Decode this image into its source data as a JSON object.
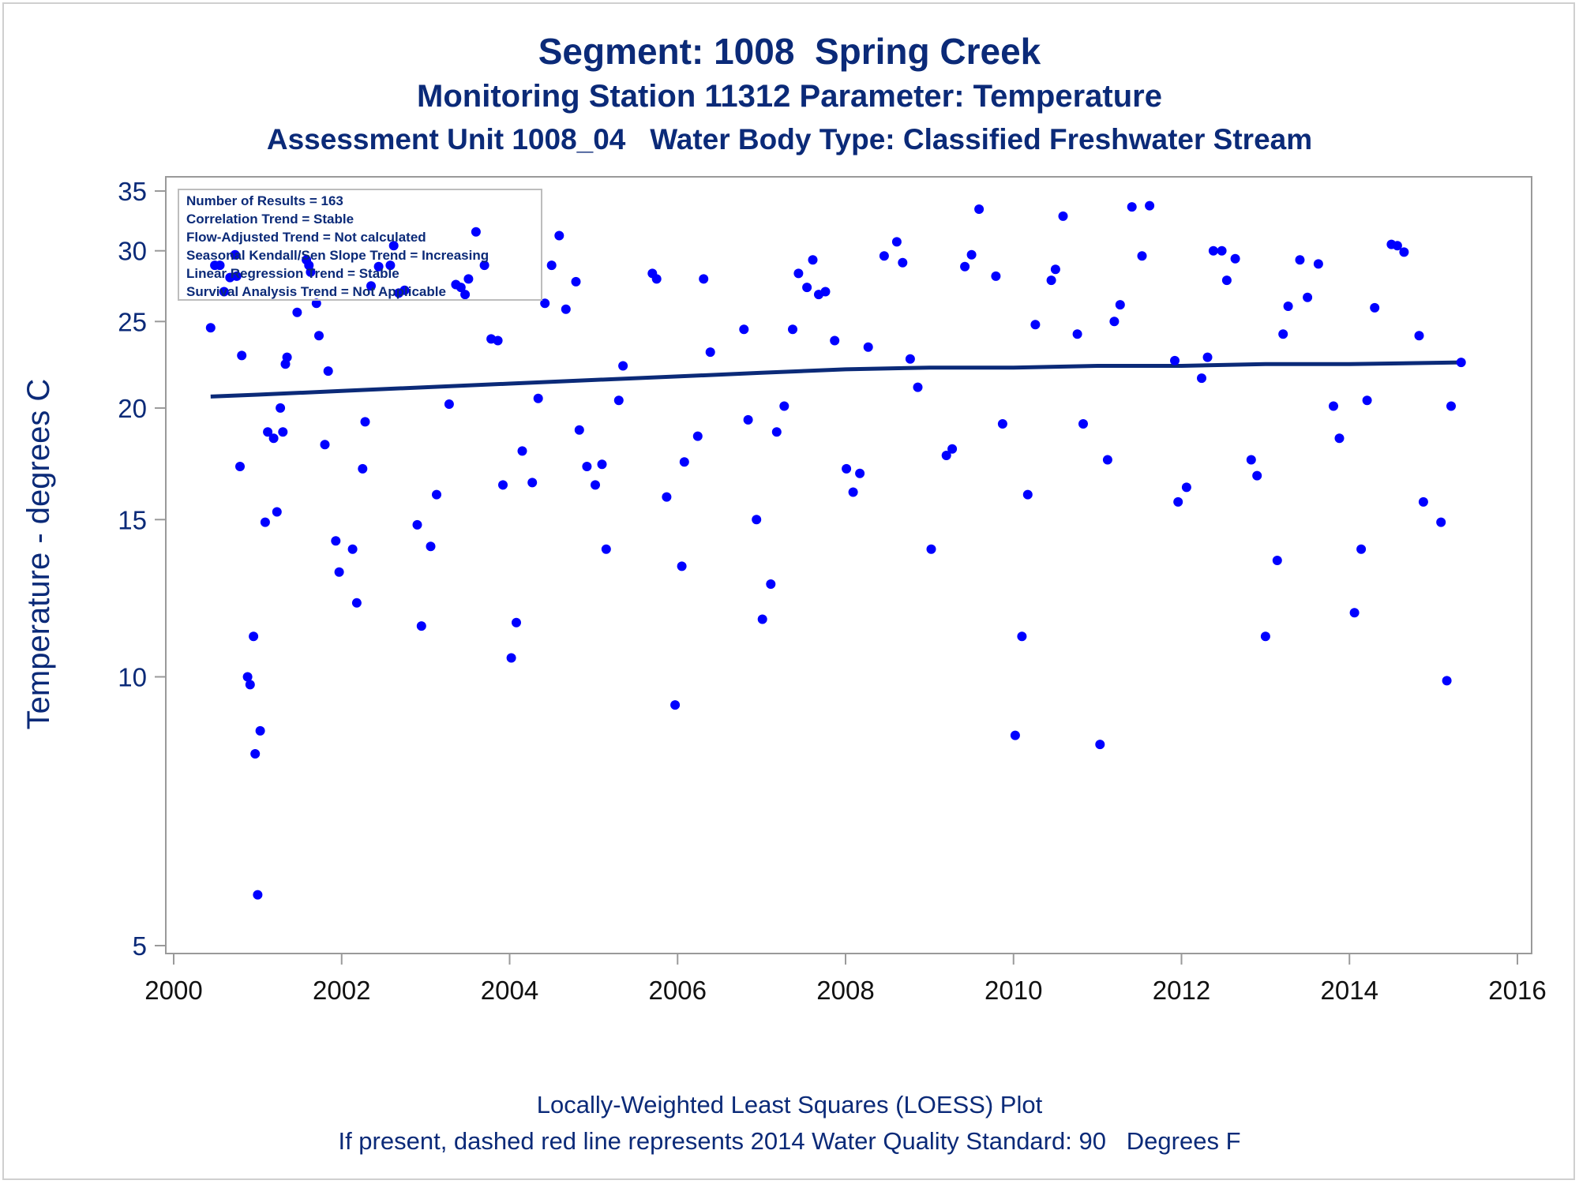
{
  "chart_data": {
    "type": "scatter",
    "title": "Segment: 1008  Spring Creek",
    "subtitle": "Monitoring Station 11312 Parameter: Temperature",
    "subtitle2": "Assessment Unit 1008_04   Water Body Type: Classified Freshwater Stream",
    "xlabel": "",
    "ylabel": "Temperature - degrees C",
    "footnote1": "Locally-Weighted Least Squares (LOESS) Plot",
    "footnote2": "If present, dashed red line represents 2014 Water Quality Standard: 90   Degrees F",
    "xlim": [
      2000,
      2016
    ],
    "ylim": [
      5,
      35
    ],
    "y_scale": "log",
    "x_ticks": [
      "2000",
      "2002",
      "2004",
      "2006",
      "2008",
      "2010",
      "2012",
      "2014",
      "2016"
    ],
    "y_ticks": [
      "5",
      "10",
      "15",
      "20",
      "25",
      "30",
      "35"
    ],
    "grid": false,
    "stats_box": {
      "placement": "top-left",
      "lines": [
        "Number of Results = 163",
        "Correlation Trend = Stable",
        "Flow-Adjusted Trend = Not calculated",
        "Seasonal Kendall/Sen Slope Trend = Increasing",
        "Linear Regression Trend = Stable",
        "Survival Analysis Trend = Not Applicable"
      ]
    },
    "colors": {
      "points": "#0000ff",
      "trend": "#0b2a78",
      "text": "#0b2a78"
    },
    "points": [
      [
        2000.44,
        24.6
      ],
      [
        2000.49,
        28.9
      ],
      [
        2000.55,
        28.9
      ],
      [
        2000.6,
        27.0
      ],
      [
        2000.67,
        28.0
      ],
      [
        2000.73,
        29.7
      ],
      [
        2000.75,
        28.1
      ],
      [
        2000.79,
        17.2
      ],
      [
        2000.81,
        22.9
      ],
      [
        2000.88,
        10.0
      ],
      [
        2000.91,
        9.8
      ],
      [
        2000.95,
        11.1
      ],
      [
        2000.97,
        8.2
      ],
      [
        2001.0,
        5.7
      ],
      [
        2001.03,
        8.7
      ],
      [
        2001.09,
        14.9
      ],
      [
        2001.12,
        18.8
      ],
      [
        2001.19,
        18.5
      ],
      [
        2001.23,
        15.3
      ],
      [
        2001.27,
        20.0
      ],
      [
        2001.3,
        18.8
      ],
      [
        2001.33,
        22.4
      ],
      [
        2001.35,
        22.8
      ],
      [
        2001.47,
        25.6
      ],
      [
        2001.58,
        29.3
      ],
      [
        2001.61,
        28.9
      ],
      [
        2001.63,
        28.4
      ],
      [
        2001.7,
        26.2
      ],
      [
        2001.73,
        24.1
      ],
      [
        2001.8,
        18.2
      ],
      [
        2001.84,
        22.0
      ],
      [
        2001.93,
        14.2
      ],
      [
        2001.97,
        13.1
      ],
      [
        2002.13,
        13.9
      ],
      [
        2002.18,
        12.1
      ],
      [
        2002.25,
        17.1
      ],
      [
        2002.28,
        19.3
      ],
      [
        2002.35,
        27.4
      ],
      [
        2002.44,
        28.8
      ],
      [
        2002.58,
        28.9
      ],
      [
        2002.62,
        30.4
      ],
      [
        2002.68,
        26.9
      ],
      [
        2002.75,
        27.1
      ],
      [
        2002.9,
        14.8
      ],
      [
        2002.95,
        11.4
      ],
      [
        2003.06,
        14.0
      ],
      [
        2003.13,
        16.0
      ],
      [
        2003.28,
        20.2
      ],
      [
        2003.36,
        27.5
      ],
      [
        2003.42,
        27.3
      ],
      [
        2003.47,
        26.8
      ],
      [
        2003.51,
        27.9
      ],
      [
        2003.6,
        31.5
      ],
      [
        2003.7,
        28.9
      ],
      [
        2003.78,
        23.9
      ],
      [
        2003.86,
        23.8
      ],
      [
        2003.92,
        16.4
      ],
      [
        2004.02,
        10.5
      ],
      [
        2004.08,
        11.5
      ],
      [
        2004.15,
        17.9
      ],
      [
        2004.27,
        16.5
      ],
      [
        2004.34,
        20.5
      ],
      [
        2004.42,
        26.2
      ],
      [
        2004.5,
        28.9
      ],
      [
        2004.59,
        31.2
      ],
      [
        2004.67,
        25.8
      ],
      [
        2004.79,
        27.7
      ],
      [
        2004.83,
        18.9
      ],
      [
        2004.92,
        17.2
      ],
      [
        2005.02,
        16.4
      ],
      [
        2005.1,
        17.3
      ],
      [
        2005.15,
        13.9
      ],
      [
        2005.3,
        20.4
      ],
      [
        2005.35,
        22.3
      ],
      [
        2005.7,
        28.3
      ],
      [
        2005.75,
        27.9
      ],
      [
        2005.87,
        15.9
      ],
      [
        2005.97,
        9.3
      ],
      [
        2006.05,
        13.3
      ],
      [
        2006.08,
        17.4
      ],
      [
        2006.24,
        18.6
      ],
      [
        2006.31,
        27.9
      ],
      [
        2006.39,
        23.1
      ],
      [
        2006.79,
        24.5
      ],
      [
        2006.84,
        19.4
      ],
      [
        2006.94,
        15.0
      ],
      [
        2007.01,
        11.6
      ],
      [
        2007.11,
        12.7
      ],
      [
        2007.18,
        18.8
      ],
      [
        2007.27,
        20.1
      ],
      [
        2007.37,
        24.5
      ],
      [
        2007.44,
        28.3
      ],
      [
        2007.54,
        27.3
      ],
      [
        2007.61,
        29.3
      ],
      [
        2007.68,
        26.8
      ],
      [
        2007.76,
        27.0
      ],
      [
        2007.87,
        23.8
      ],
      [
        2008.01,
        17.1
      ],
      [
        2008.09,
        16.1
      ],
      [
        2008.17,
        16.9
      ],
      [
        2008.27,
        23.4
      ],
      [
        2008.46,
        29.6
      ],
      [
        2008.61,
        30.7
      ],
      [
        2008.68,
        29.1
      ],
      [
        2008.77,
        22.7
      ],
      [
        2008.86,
        21.1
      ],
      [
        2009.02,
        13.9
      ],
      [
        2009.2,
        17.7
      ],
      [
        2009.27,
        18.0
      ],
      [
        2009.42,
        28.8
      ],
      [
        2009.5,
        29.7
      ],
      [
        2009.59,
        33.4
      ],
      [
        2009.79,
        28.1
      ],
      [
        2009.87,
        19.2
      ],
      [
        2010.02,
        8.6
      ],
      [
        2010.1,
        11.1
      ],
      [
        2010.17,
        16.0
      ],
      [
        2010.26,
        24.8
      ],
      [
        2010.45,
        27.8
      ],
      [
        2010.5,
        28.6
      ],
      [
        2010.59,
        32.8
      ],
      [
        2010.76,
        24.2
      ],
      [
        2010.83,
        19.2
      ],
      [
        2011.03,
        8.4
      ],
      [
        2011.12,
        17.5
      ],
      [
        2011.2,
        25.0
      ],
      [
        2011.27,
        26.1
      ],
      [
        2011.41,
        33.6
      ],
      [
        2011.53,
        29.6
      ],
      [
        2011.62,
        33.7
      ],
      [
        2011.92,
        22.6
      ],
      [
        2011.96,
        15.7
      ],
      [
        2012.06,
        16.3
      ],
      [
        2012.24,
        21.6
      ],
      [
        2012.31,
        22.8
      ],
      [
        2012.38,
        30.0
      ],
      [
        2012.48,
        30.0
      ],
      [
        2012.54,
        27.8
      ],
      [
        2012.64,
        29.4
      ],
      [
        2012.83,
        17.5
      ],
      [
        2012.9,
        16.8
      ],
      [
        2013.0,
        11.1
      ],
      [
        2013.14,
        13.5
      ],
      [
        2013.21,
        24.2
      ],
      [
        2013.27,
        26.0
      ],
      [
        2013.41,
        29.3
      ],
      [
        2013.5,
        26.6
      ],
      [
        2013.63,
        29.0
      ],
      [
        2013.81,
        20.1
      ],
      [
        2013.88,
        18.5
      ],
      [
        2014.06,
        11.8
      ],
      [
        2014.14,
        13.9
      ],
      [
        2014.21,
        20.4
      ],
      [
        2014.3,
        25.9
      ],
      [
        2014.5,
        30.5
      ],
      [
        2014.57,
        30.4
      ],
      [
        2014.65,
        29.9
      ],
      [
        2014.83,
        24.1
      ],
      [
        2014.88,
        15.7
      ],
      [
        2015.09,
        14.9
      ],
      [
        2015.16,
        9.9
      ],
      [
        2015.21,
        20.1
      ],
      [
        2015.33,
        22.5
      ]
    ],
    "trend_line": [
      [
        2000.44,
        20.6
      ],
      [
        2001.0,
        20.7
      ],
      [
        2002.0,
        20.9
      ],
      [
        2003.0,
        21.1
      ],
      [
        2004.0,
        21.3
      ],
      [
        2005.0,
        21.5
      ],
      [
        2006.0,
        21.7
      ],
      [
        2007.0,
        21.9
      ],
      [
        2008.0,
        22.1
      ],
      [
        2009.0,
        22.2
      ],
      [
        2010.0,
        22.2
      ],
      [
        2011.0,
        22.3
      ],
      [
        2012.0,
        22.3
      ],
      [
        2013.0,
        22.4
      ],
      [
        2014.0,
        22.4
      ],
      [
        2015.33,
        22.5
      ]
    ]
  }
}
